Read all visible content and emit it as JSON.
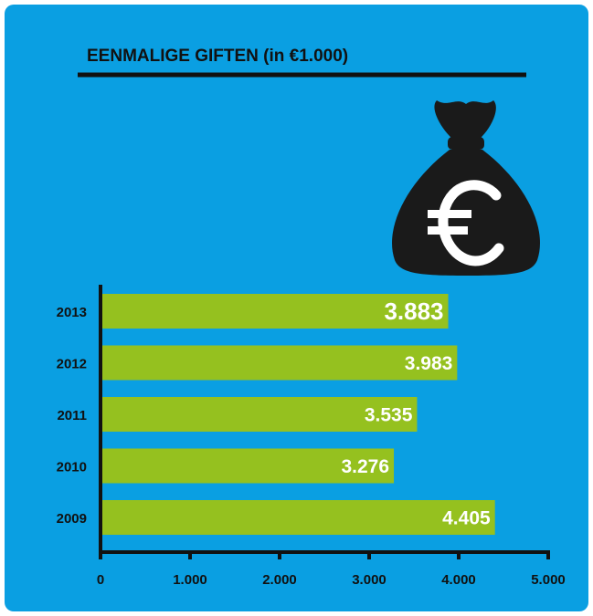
{
  "chart_data": {
    "type": "barh",
    "title": "EENMALIGE GIFTEN (in €1.000)",
    "categories": [
      "2013",
      "2012",
      "2011",
      "2010",
      "2009"
    ],
    "values": [
      3883,
      3983,
      3535,
      3276,
      4405
    ],
    "value_labels": [
      "3.883",
      "3.983",
      "3.535",
      "3.276",
      "4.405"
    ],
    "color": "#95c11f",
    "xlim": [
      0,
      5000
    ],
    "xticks": [
      0,
      {
        "value": 1000,
        "label": "1.000"
      },
      {
        "value": 2000,
        "label": "2.000"
      },
      {
        "value": 3000,
        "label": "3.000"
      },
      {
        "value": 4000,
        "label": "4.000"
      },
      {
        "value": 5000,
        "label": "5.000"
      }
    ]
  }
}
